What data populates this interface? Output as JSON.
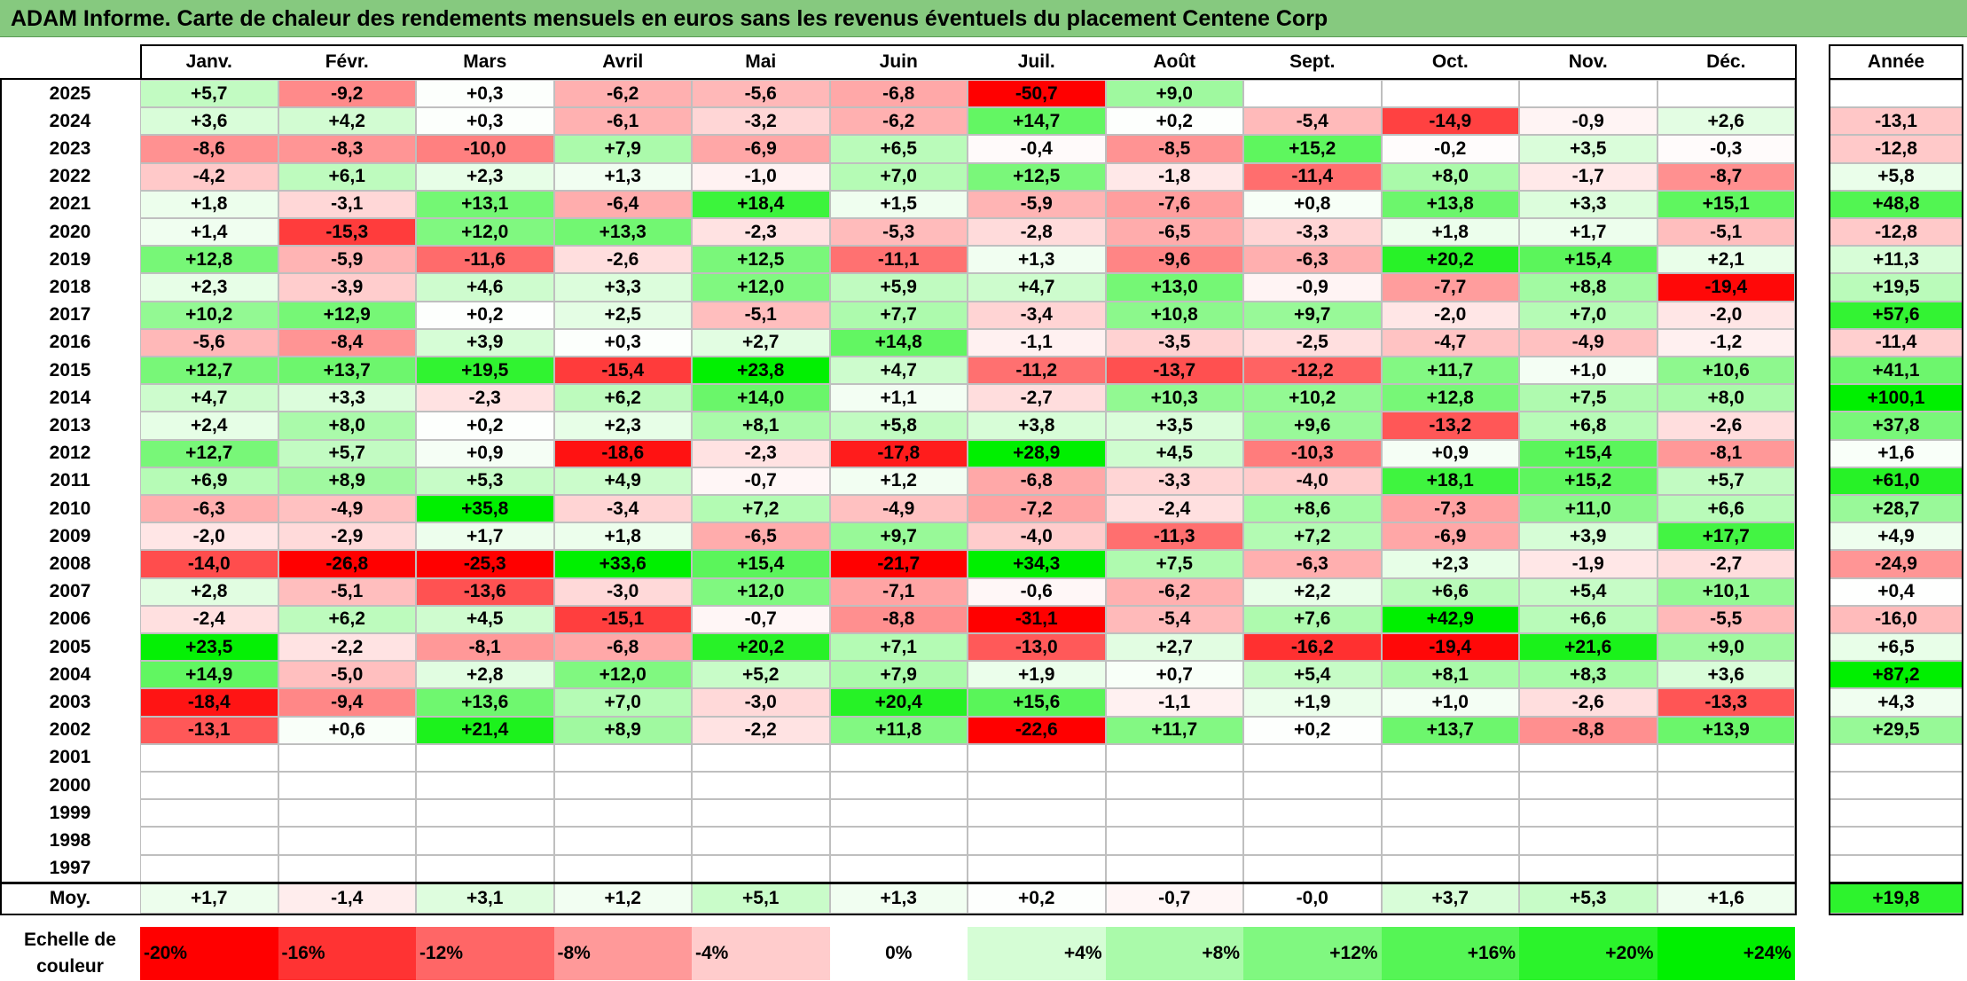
{
  "title": "ADAM Informe. Carte de chaleur des rendements mensuels en euros sans les revenus éventuels du placement Centene Corp",
  "chart_data": {
    "type": "heatmap",
    "months": [
      "Janv.",
      "Févr.",
      "Mars",
      "Avril",
      "Mai",
      "Juin",
      "Juil.",
      "Août",
      "Sept.",
      "Oct.",
      "Nov.",
      "Déc."
    ],
    "annual_header": "Année",
    "rows": [
      {
        "year": "2025",
        "values": [
          "+5,7",
          "-9,2",
          "+0,3",
          "-6,2",
          "-5,6",
          "-6,8",
          "-50,7",
          "+9,0",
          "",
          "",
          "",
          ""
        ],
        "annual": ""
      },
      {
        "year": "2024",
        "values": [
          "+3,6",
          "+4,2",
          "+0,3",
          "-6,1",
          "-3,2",
          "-6,2",
          "+14,7",
          "+0,2",
          "-5,4",
          "-14,9",
          "-0,9",
          "+2,6"
        ],
        "annual": "-13,1"
      },
      {
        "year": "2023",
        "values": [
          "-8,6",
          "-8,3",
          "-10,0",
          "+7,9",
          "-6,9",
          "+6,5",
          "-0,4",
          "-8,5",
          "+15,2",
          "-0,2",
          "+3,5",
          "-0,3"
        ],
        "annual": "-12,8"
      },
      {
        "year": "2022",
        "values": [
          "-4,2",
          "+6,1",
          "+2,3",
          "+1,3",
          "-1,0",
          "+7,0",
          "+12,5",
          "-1,8",
          "-11,4",
          "+8,0",
          "-1,7",
          "-8,7"
        ],
        "annual": "+5,8"
      },
      {
        "year": "2021",
        "values": [
          "+1,8",
          "-3,1",
          "+13,1",
          "-6,4",
          "+18,4",
          "+1,5",
          "-5,9",
          "-7,6",
          "+0,8",
          "+13,8",
          "+3,3",
          "+15,1"
        ],
        "annual": "+48,8"
      },
      {
        "year": "2020",
        "values": [
          "+1,4",
          "-15,3",
          "+12,0",
          "+13,3",
          "-2,3",
          "-5,3",
          "-2,8",
          "-6,5",
          "-3,3",
          "+1,8",
          "+1,7",
          "-5,1"
        ],
        "annual": "-12,8"
      },
      {
        "year": "2019",
        "values": [
          "+12,8",
          "-5,9",
          "-11,6",
          "-2,6",
          "+12,5",
          "-11,1",
          "+1,3",
          "-9,6",
          "-6,3",
          "+20,2",
          "+15,4",
          "+2,1"
        ],
        "annual": "+11,3"
      },
      {
        "year": "2018",
        "values": [
          "+2,3",
          "-3,9",
          "+4,6",
          "+3,3",
          "+12,0",
          "+5,9",
          "+4,7",
          "+13,0",
          "-0,9",
          "-7,7",
          "+8,8",
          "-19,4"
        ],
        "annual": "+19,5"
      },
      {
        "year": "2017",
        "values": [
          "+10,2",
          "+12,9",
          "+0,2",
          "+2,5",
          "-5,1",
          "+7,7",
          "-3,4",
          "+10,8",
          "+9,7",
          "-2,0",
          "+7,0",
          "-2,0"
        ],
        "annual": "+57,6"
      },
      {
        "year": "2016",
        "values": [
          "-5,6",
          "-8,4",
          "+3,9",
          "+0,3",
          "+2,7",
          "+14,8",
          "-1,1",
          "-3,5",
          "-2,5",
          "-4,7",
          "-4,9",
          "-1,2"
        ],
        "annual": "-11,4"
      },
      {
        "year": "2015",
        "values": [
          "+12,7",
          "+13,7",
          "+19,5",
          "-15,4",
          "+23,8",
          "+4,7",
          "-11,2",
          "-13,7",
          "-12,2",
          "+11,7",
          "+1,0",
          "+10,6"
        ],
        "annual": "+41,1"
      },
      {
        "year": "2014",
        "values": [
          "+4,7",
          "+3,3",
          "-2,3",
          "+6,2",
          "+14,0",
          "+1,1",
          "-2,7",
          "+10,3",
          "+10,2",
          "+12,8",
          "+7,5",
          "+8,0"
        ],
        "annual": "+100,1"
      },
      {
        "year": "2013",
        "values": [
          "+2,4",
          "+8,0",
          "+0,2",
          "+2,3",
          "+8,1",
          "+5,8",
          "+3,8",
          "+3,5",
          "+9,6",
          "-13,2",
          "+6,8",
          "-2,6"
        ],
        "annual": "+37,8"
      },
      {
        "year": "2012",
        "values": [
          "+12,7",
          "+5,7",
          "+0,9",
          "-18,6",
          "-2,3",
          "-17,8",
          "+28,9",
          "+4,5",
          "-10,3",
          "+0,9",
          "+15,4",
          "-8,1"
        ],
        "annual": "+1,6"
      },
      {
        "year": "2011",
        "values": [
          "+6,9",
          "+8,9",
          "+5,3",
          "+4,9",
          "-0,7",
          "+1,2",
          "-6,8",
          "-3,3",
          "-4,0",
          "+18,1",
          "+15,2",
          "+5,7"
        ],
        "annual": "+61,0"
      },
      {
        "year": "2010",
        "values": [
          "-6,3",
          "-4,9",
          "+35,8",
          "-3,4",
          "+7,2",
          "-4,9",
          "-7,2",
          "-2,4",
          "+8,6",
          "-7,3",
          "+11,0",
          "+6,6"
        ],
        "annual": "+28,7"
      },
      {
        "year": "2009",
        "values": [
          "-2,0",
          "-2,9",
          "+1,7",
          "+1,8",
          "-6,5",
          "+9,7",
          "-4,0",
          "-11,3",
          "+7,2",
          "-6,9",
          "+3,9",
          "+17,7"
        ],
        "annual": "+4,9"
      },
      {
        "year": "2008",
        "values": [
          "-14,0",
          "-26,8",
          "-25,3",
          "+33,6",
          "+15,4",
          "-21,7",
          "+34,3",
          "+7,5",
          "-6,3",
          "+2,3",
          "-1,9",
          "-2,7"
        ],
        "annual": "-24,9"
      },
      {
        "year": "2007",
        "values": [
          "+2,8",
          "-5,1",
          "-13,6",
          "-3,0",
          "+12,0",
          "-7,1",
          "-0,6",
          "-6,2",
          "+2,2",
          "+6,6",
          "+5,4",
          "+10,1"
        ],
        "annual": "+0,4"
      },
      {
        "year": "2006",
        "values": [
          "-2,4",
          "+6,2",
          "+4,5",
          "-15,1",
          "-0,7",
          "-8,8",
          "-31,1",
          "-5,4",
          "+7,6",
          "+42,9",
          "+6,6",
          "-5,5"
        ],
        "annual": "-16,0"
      },
      {
        "year": "2005",
        "values": [
          "+23,5",
          "-2,2",
          "-8,1",
          "-6,8",
          "+20,2",
          "+7,1",
          "-13,0",
          "+2,7",
          "-16,2",
          "-19,4",
          "+21,6",
          "+9,0"
        ],
        "annual": "+6,5"
      },
      {
        "year": "2004",
        "values": [
          "+14,9",
          "-5,0",
          "+2,8",
          "+12,0",
          "+5,2",
          "+7,9",
          "+1,9",
          "+0,7",
          "+5,4",
          "+8,1",
          "+8,3",
          "+3,6"
        ],
        "annual": "+87,2"
      },
      {
        "year": "2003",
        "values": [
          "-18,4",
          "-9,4",
          "+13,6",
          "+7,0",
          "-3,0",
          "+20,4",
          "+15,6",
          "-1,1",
          "+1,9",
          "+1,0",
          "-2,6",
          "-13,3"
        ],
        "annual": "+4,3"
      },
      {
        "year": "2002",
        "values": [
          "-13,1",
          "+0,6",
          "+21,4",
          "+8,9",
          "-2,2",
          "+11,8",
          "-22,6",
          "+11,7",
          "+0,2",
          "+13,7",
          "-8,8",
          "+13,9"
        ],
        "annual": "+29,5"
      },
      {
        "year": "2001",
        "values": [
          "",
          "",
          "",
          "",
          "",
          "",
          "",
          "",
          "",
          "",
          "",
          ""
        ],
        "annual": ""
      },
      {
        "year": "2000",
        "values": [
          "",
          "",
          "",
          "",
          "",
          "",
          "",
          "",
          "",
          "",
          "",
          ""
        ],
        "annual": ""
      },
      {
        "year": "1999",
        "values": [
          "",
          "",
          "",
          "",
          "",
          "",
          "",
          "",
          "",
          "",
          "",
          ""
        ],
        "annual": ""
      },
      {
        "year": "1998",
        "values": [
          "",
          "",
          "",
          "",
          "",
          "",
          "",
          "",
          "",
          "",
          "",
          ""
        ],
        "annual": ""
      },
      {
        "year": "1997",
        "values": [
          "",
          "",
          "",
          "",
          "",
          "",
          "",
          "",
          "",
          "",
          "",
          ""
        ],
        "annual": ""
      }
    ],
    "average": {
      "label": "Moy.",
      "values": [
        "+1,7",
        "-1,4",
        "+3,1",
        "+1,2",
        "+5,1",
        "+1,3",
        "+0,2",
        "-0,7",
        "-0,0",
        "+3,7",
        "+5,3",
        "+1,6"
      ],
      "annual": "+19,8"
    },
    "color_scale": {
      "label": "Echelle de couleur",
      "steps": [
        {
          "text": "-20%",
          "value": -20
        },
        {
          "text": "-16%",
          "value": -16
        },
        {
          "text": "-12%",
          "value": -12
        },
        {
          "text": "-8%",
          "value": -8
        },
        {
          "text": "-4%",
          "value": -4
        },
        {
          "text": "0%",
          "value": 0
        },
        {
          "text": "+4%",
          "value": 4
        },
        {
          "text": "+8%",
          "value": 8
        },
        {
          "text": "+12%",
          "value": 12
        },
        {
          "text": "+16%",
          "value": 16
        },
        {
          "text": "+20%",
          "value": 20
        },
        {
          "text": "+24%",
          "value": 24
        }
      ]
    },
    "colors": {
      "negative_max": "#ff0000",
      "neutral": "#ffffff",
      "positive_max": "#00f000"
    }
  }
}
